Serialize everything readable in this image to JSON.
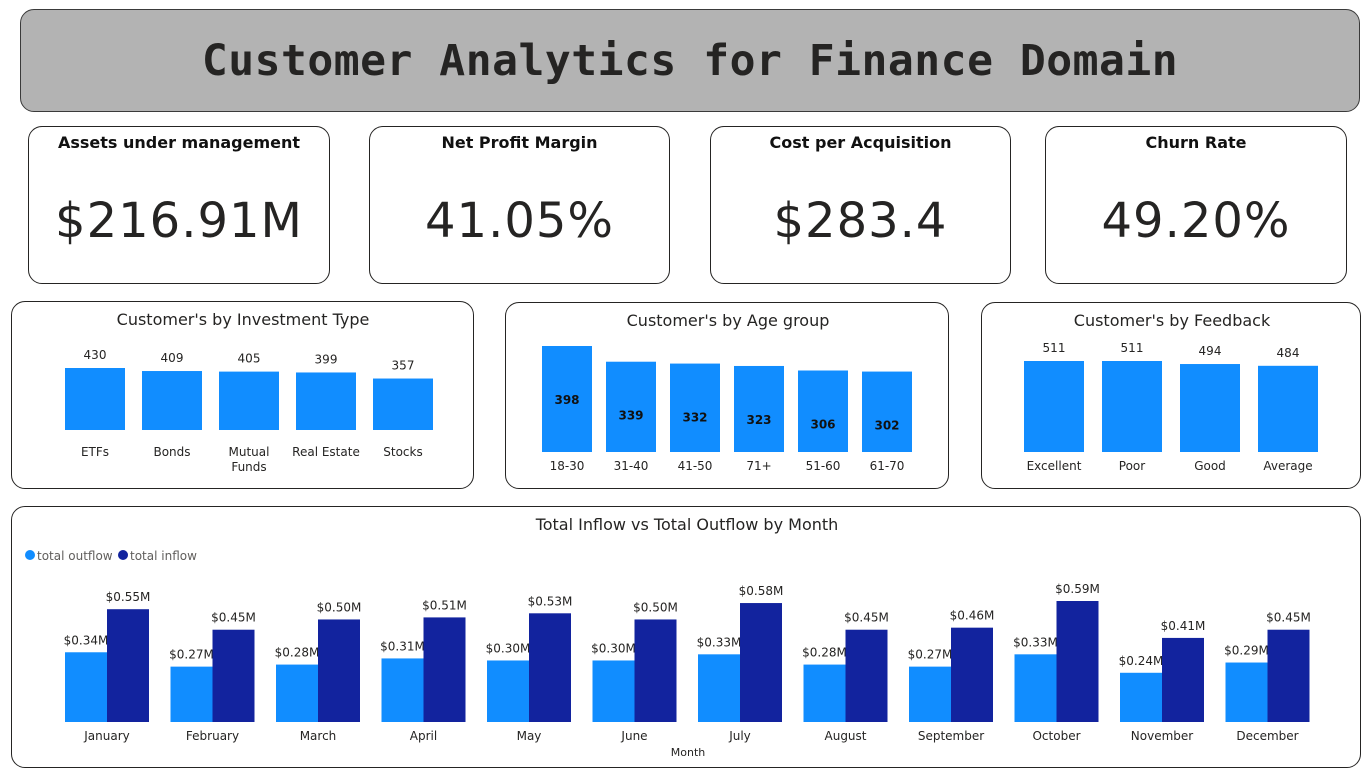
{
  "header": {
    "title": "Customer Analytics for Finance Domain"
  },
  "kpis": [
    {
      "label": "Assets under management",
      "value": "$216.91M"
    },
    {
      "label": "Net Profit Margin",
      "value": "41.05%"
    },
    {
      "label": "Cost per Acquisition",
      "value": "$283.4"
    },
    {
      "label": "Churn Rate",
      "value": "49.20%"
    }
  ],
  "colors": {
    "light_blue": "#118dff",
    "dark_blue": "#12239e",
    "banner": "#b3b3b3"
  },
  "chart_data": [
    {
      "type": "bar",
      "title": "Customer's by Investment Type",
      "categories": [
        "ETFs",
        "Bonds",
        "Mutual Funds",
        "Real Estate",
        "Stocks"
      ],
      "values": [
        430,
        409,
        405,
        399,
        357
      ],
      "ylim": [
        0,
        430
      ],
      "grid": false,
      "label_position": "above"
    },
    {
      "type": "bar",
      "title": "Customer's by Age group",
      "categories": [
        "18-30",
        "31-40",
        "41-50",
        "71+",
        "51-60",
        "61-70"
      ],
      "values": [
        398,
        339,
        332,
        323,
        306,
        302
      ],
      "ylim": [
        0,
        398
      ],
      "grid": false,
      "label_position": "inside"
    },
    {
      "type": "bar",
      "title": "Customer's by Feedback",
      "categories": [
        "Excellent",
        "Poor",
        "Good",
        "Average"
      ],
      "values": [
        511,
        511,
        494,
        484
      ],
      "ylim": [
        0,
        511
      ],
      "grid": false,
      "label_position": "above"
    },
    {
      "type": "bar",
      "title": "Total Inflow vs Total Outflow by Month",
      "xlabel": "Month",
      "categories": [
        "January",
        "February",
        "March",
        "April",
        "May",
        "June",
        "July",
        "August",
        "September",
        "October",
        "November",
        "December"
      ],
      "series": [
        {
          "name": "total outflow",
          "values": [
            0.34,
            0.27,
            0.28,
            0.31,
            0.3,
            0.3,
            0.33,
            0.28,
            0.27,
            0.33,
            0.24,
            0.29
          ],
          "labels": [
            "$0.34M",
            "$0.27M",
            "$0.28M",
            "$0.31M",
            "$0.30M",
            "$0.30M",
            "$0.33M",
            "$0.28M",
            "$0.27M",
            "$0.33M",
            "$0.24M",
            "$0.29M"
          ]
        },
        {
          "name": "total inflow",
          "values": [
            0.55,
            0.45,
            0.5,
            0.51,
            0.53,
            0.5,
            0.58,
            0.45,
            0.46,
            0.59,
            0.41,
            0.45
          ],
          "labels": [
            "$0.55M",
            "$0.45M",
            "$0.50M",
            "$0.51M",
            "$0.53M",
            "$0.50M",
            "$0.58M",
            "$0.45M",
            "$0.46M",
            "$0.59M",
            "$0.41M",
            "$0.45M"
          ]
        }
      ],
      "unit": "M",
      "ylim": [
        0,
        0.59
      ],
      "grid": false,
      "legend": "top-left"
    }
  ]
}
